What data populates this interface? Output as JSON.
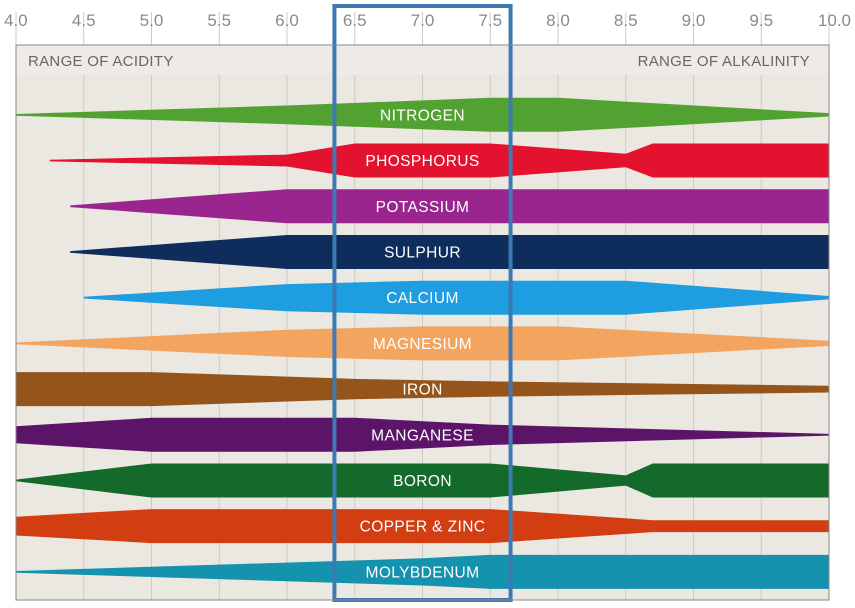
{
  "chart_data": {
    "type": "area",
    "x_ticks": [
      "4.0",
      "4.5",
      "5.0",
      "5.5",
      "6.0",
      "6.5",
      "7.0",
      "7.5",
      "8.0",
      "8.5",
      "9.0",
      "9.5",
      "10.0"
    ],
    "xlim": [
      4.0,
      10.0
    ],
    "acidity_label": "RANGE OF ACIDITY",
    "alkalinity_label": "RANGE OF ALKALINITY",
    "highlight_range": [
      6.35,
      7.65
    ],
    "colors": {
      "background": "#ebe7e1",
      "grid": "#cfcac3",
      "frame": "#888888",
      "highlight": "#3d7ab3"
    },
    "series": [
      {
        "name": "NITROGEN",
        "color": "#52a232",
        "profile": [
          [
            4.0,
            0.05
          ],
          [
            6.0,
            0.55
          ],
          [
            7.5,
            1.0
          ],
          [
            8.0,
            1.0
          ],
          [
            10.0,
            0.1
          ]
        ]
      },
      {
        "name": "PHOSPHORUS",
        "color": "#e3122e",
        "profile": [
          [
            4.25,
            0.05
          ],
          [
            6.0,
            0.35
          ],
          [
            6.5,
            1.0
          ],
          [
            7.5,
            1.0
          ],
          [
            8.5,
            0.4
          ],
          [
            8.7,
            1.0
          ],
          [
            10.0,
            1.0
          ]
        ]
      },
      {
        "name": "POTASSIUM",
        "color": "#9b258f",
        "profile": [
          [
            4.4,
            0.05
          ],
          [
            6.0,
            1.0
          ],
          [
            10.0,
            1.0
          ]
        ]
      },
      {
        "name": "SULPHUR",
        "color": "#0e2d5c",
        "profile": [
          [
            4.4,
            0.05
          ],
          [
            6.0,
            1.0
          ],
          [
            10.0,
            1.0
          ]
        ]
      },
      {
        "name": "CALCIUM",
        "color": "#1e9de0",
        "profile": [
          [
            4.5,
            0.05
          ],
          [
            6.0,
            0.8
          ],
          [
            7.0,
            1.0
          ],
          [
            8.5,
            1.0
          ],
          [
            10.0,
            0.1
          ]
        ]
      },
      {
        "name": "MAGNESIUM",
        "color": "#f3a560",
        "profile": [
          [
            4.0,
            0.05
          ],
          [
            6.0,
            0.8
          ],
          [
            7.0,
            1.0
          ],
          [
            8.0,
            1.0
          ],
          [
            10.0,
            0.15
          ]
        ]
      },
      {
        "name": "IRON",
        "color": "#95551a",
        "profile": [
          [
            4.0,
            1.0
          ],
          [
            5.0,
            1.0
          ],
          [
            6.5,
            0.6
          ],
          [
            7.5,
            0.45
          ],
          [
            10.0,
            0.2
          ]
        ]
      },
      {
        "name": "MANGANESE",
        "color": "#5b1467",
        "profile": [
          [
            4.0,
            0.5
          ],
          [
            5.0,
            1.0
          ],
          [
            6.5,
            1.0
          ],
          [
            7.5,
            0.6
          ],
          [
            10.0,
            0.05
          ]
        ]
      },
      {
        "name": "BORON",
        "color": "#146a2a",
        "profile": [
          [
            4.0,
            0.05
          ],
          [
            5.0,
            1.0
          ],
          [
            7.5,
            1.0
          ],
          [
            8.5,
            0.3
          ],
          [
            8.7,
            1.0
          ],
          [
            10.0,
            1.0
          ]
        ]
      },
      {
        "name": "COPPER & ZINC",
        "color": "#d23d12",
        "profile": [
          [
            4.0,
            0.55
          ],
          [
            5.0,
            1.0
          ],
          [
            7.5,
            1.0
          ],
          [
            8.7,
            0.35
          ],
          [
            10.0,
            0.35
          ]
        ]
      },
      {
        "name": "MOLYBDENUM",
        "color": "#1592ad",
        "profile": [
          [
            4.0,
            0.05
          ],
          [
            7.0,
            0.8
          ],
          [
            7.5,
            1.0
          ],
          [
            10.0,
            1.0
          ]
        ]
      }
    ]
  }
}
